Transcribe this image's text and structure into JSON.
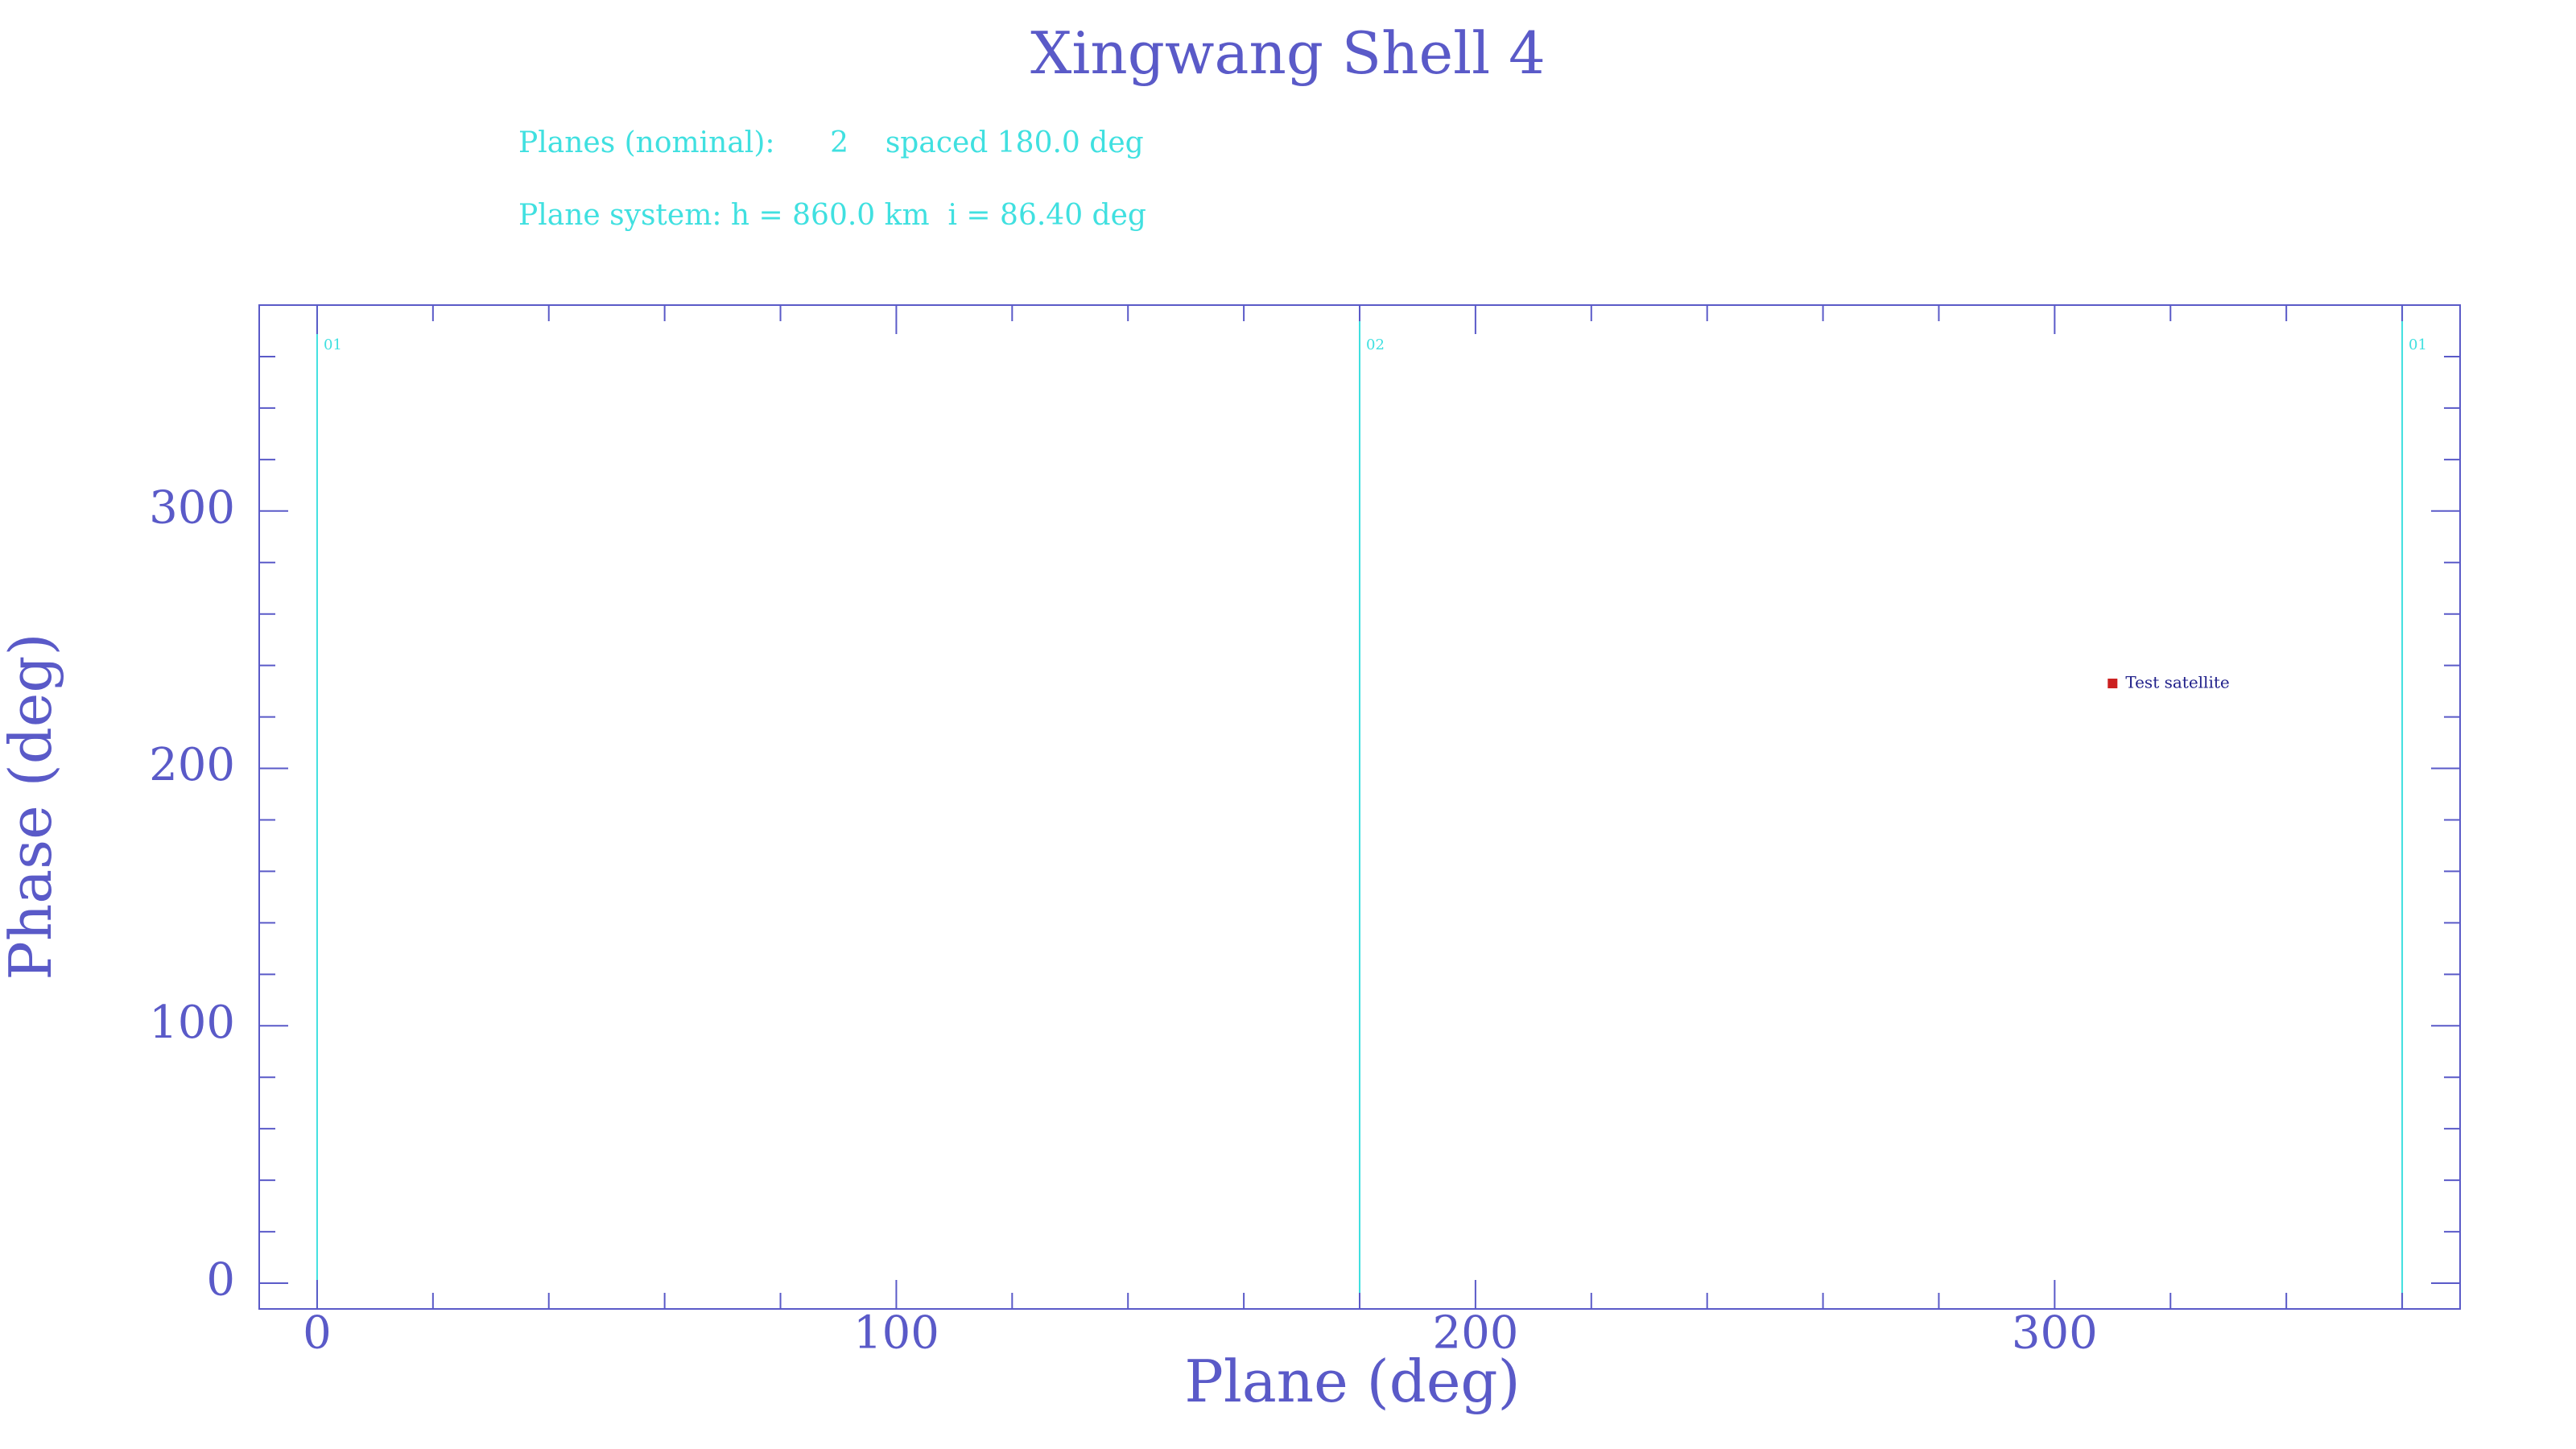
{
  "chart_data": {
    "type": "scatter",
    "title": "Xingwang Shell 4",
    "annotations": [
      "Planes (nominal):      2    spaced 180.0 deg",
      "Plane system: h = 860.0 km  i = 86.40 deg"
    ],
    "x_label": "Plane (deg)",
    "y_label": "Phase (deg)",
    "xlim": [
      -10,
      370
    ],
    "ylim": [
      -10,
      380
    ],
    "xticks": [
      0,
      100,
      200,
      300
    ],
    "yticks": [
      0,
      100,
      200,
      300
    ],
    "x_minor_ticks": [
      20,
      40,
      60,
      80,
      120,
      140,
      160,
      180,
      220,
      240,
      260,
      280,
      320,
      340,
      360
    ],
    "y_minor_ticks": [
      20,
      40,
      60,
      80,
      120,
      140,
      160,
      180,
      220,
      240,
      260,
      280,
      320,
      340,
      360
    ],
    "planes": [
      {
        "x": 0,
        "label": "01"
      },
      {
        "x": 180,
        "label": "02"
      },
      {
        "x": 360,
        "label": "01"
      }
    ],
    "plane_color": "#40e0e0",
    "axis_color": "#5a5ac8",
    "series": [
      {
        "name": "Test satellite",
        "color": "#cc2020",
        "x": [
          310
        ],
        "values": [
          233
        ]
      }
    ]
  }
}
